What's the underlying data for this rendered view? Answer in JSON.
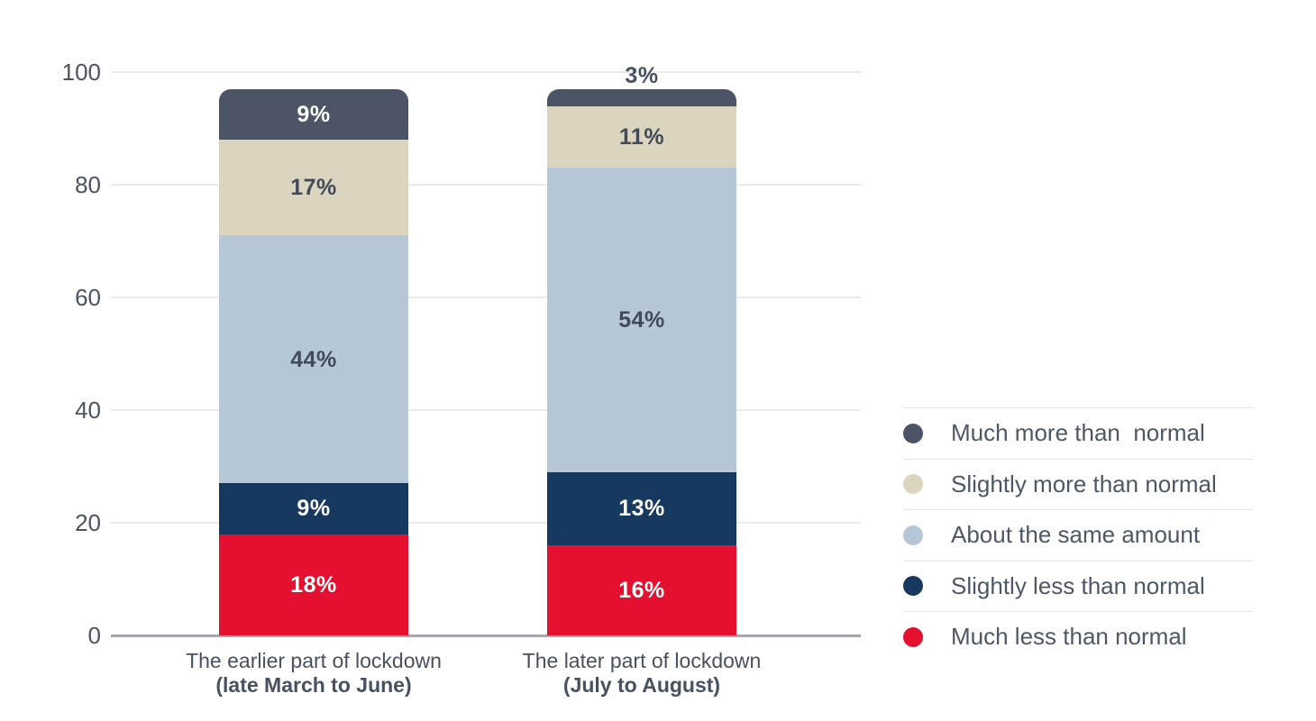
{
  "background": "#ffffff",
  "text_color": "#47515F",
  "axis_tick_color": "#4A5463",
  "gridline_color": "#EBEBEB",
  "baseline_color": "#A7A7AB",
  "chart_data": {
    "type": "bar",
    "stacked": true,
    "grid": true,
    "legend_position": "right",
    "title": "",
    "xlabel": "",
    "ylabel": "",
    "ylim": [
      0,
      100
    ],
    "yticks": [
      100,
      80,
      60,
      40,
      20,
      0
    ],
    "value_suffix": "%",
    "categories": [
      {
        "line1": "The earlier part of lockdown",
        "line2": "(late March to June)"
      },
      {
        "line1": "The later part of lockdown",
        "line2": "(July to August)"
      }
    ],
    "series": [
      {
        "name": "Much less than normal",
        "color": "#E5102F",
        "label_color": "#FFFFFF",
        "values": [
          18,
          16
        ]
      },
      {
        "name": "Slightly less than normal",
        "color": "#17395F",
        "label_color": "#FFFFFF",
        "values": [
          9,
          13
        ]
      },
      {
        "name": "About the same amount",
        "color": "#B6C7D7",
        "label_color": "#414B5A",
        "values": [
          44,
          54
        ]
      },
      {
        "name": "Slightly more than normal",
        "color": "#DBD5BF",
        "label_color": "#414B5A",
        "values": [
          17,
          11
        ]
      },
      {
        "name": "Much more than  normal",
        "color": "#4B5566",
        "label_color": "#FFFFFF",
        "values": [
          9,
          3
        ]
      }
    ]
  },
  "legend": {
    "items": [
      {
        "label": "Much more than  normal",
        "color": "#4B5566"
      },
      {
        "label": "Slightly more than normal",
        "color": "#DBD5BF"
      },
      {
        "label": "About the same amount",
        "color": "#B6C7D7"
      },
      {
        "label": "Slightly less than normal",
        "color": "#17395F"
      },
      {
        "label": "Much less than normal",
        "color": "#E5102F"
      }
    ]
  }
}
